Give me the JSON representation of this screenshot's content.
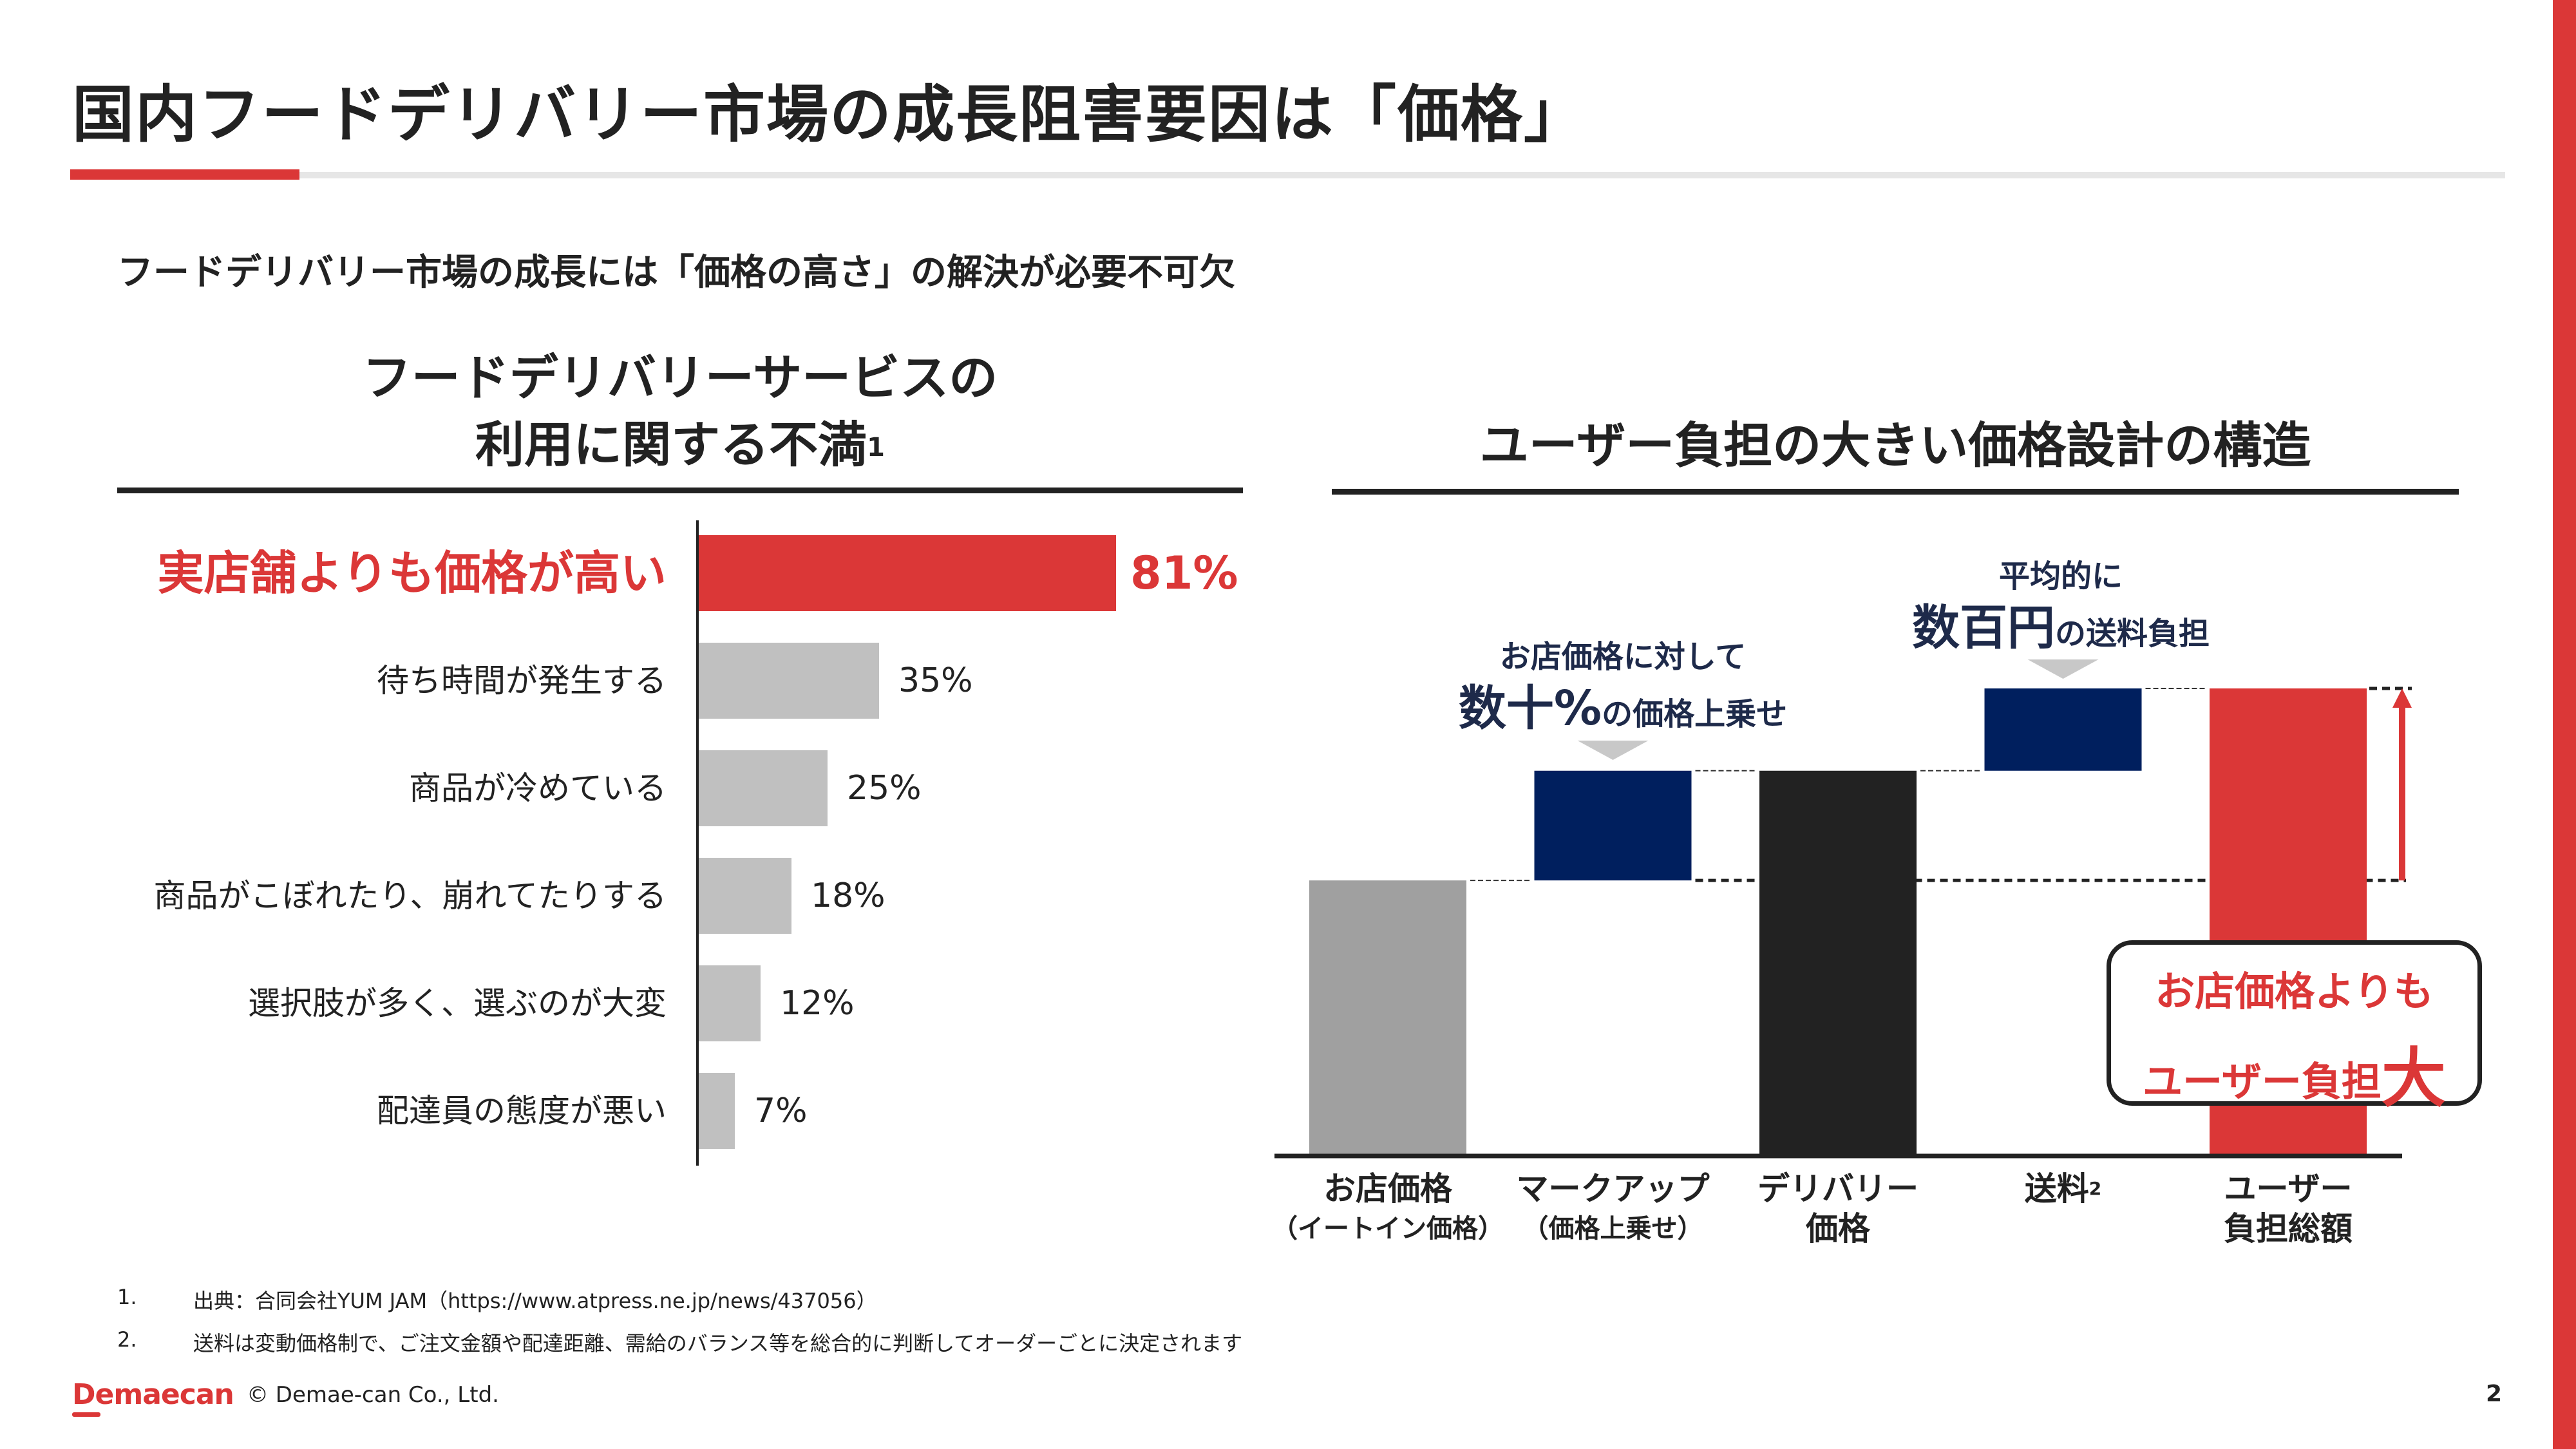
{
  "header": {
    "title": "国内フードデリバリー市場の成長阻害要因は「価格」",
    "subtitle": "フードデリバリー市場の成長には「価格の高さ」の解決が必要不可欠"
  },
  "colors": {
    "accent_red": "#db3737",
    "bar_gray": "#c0c0c0",
    "navy": "#001f5e",
    "dark": "#222222",
    "store_gray": "#a0a0a0",
    "triangle_gray": "#c8c8c8",
    "annotation_navy": "#1e2a4a"
  },
  "left_panel": {
    "title_line1": "フードデリバリーサービスの",
    "title_line2": "利用に関する不満",
    "title_footnote_mark": "1"
  },
  "right_panel": {
    "title": "ユーザー負担の大きい価格設計の構造",
    "annotation_markup": {
      "line1": "お店価格に対して",
      "emphasis": "数十%",
      "rest": "の価格上乗せ"
    },
    "annotation_shipping": {
      "line1": "平均的に",
      "emphasis": "数百円",
      "rest": "の送料負担"
    },
    "callout": {
      "line1": "お店価格よりも",
      "line2": "ユーザー負担",
      "emphasis": "大"
    }
  },
  "chart_data": [
    {
      "type": "bar",
      "orientation": "horizontal",
      "title": "フードデリバリーサービスの利用に関する不満¹",
      "categories": [
        "実店舗よりも価格が高い",
        "待ち時間が発生する",
        "商品が冷めている",
        "商品がこぼれたり、崩れてたりする",
        "選択肢が多く、選ぶのが大変",
        "配達員の態度が悪い"
      ],
      "values": [
        81,
        35,
        25,
        18,
        12,
        7
      ],
      "value_labels": [
        "81%",
        "35%",
        "25%",
        "18%",
        "12%",
        "7%"
      ],
      "highlight_index": 0,
      "unit": "%",
      "xlim": [
        0,
        100
      ],
      "grid": false,
      "legend": "none"
    },
    {
      "type": "bar",
      "subtype": "waterfall",
      "title": "ユーザー負担の大きい価格設計の構造",
      "categories": [
        {
          "label": "お店価格",
          "sublabel": "（イートイン価格）"
        },
        {
          "label": "マークアップ",
          "sublabel": "（価格上乗せ）"
        },
        {
          "label": "デリバリー",
          "sublabel": "価格"
        },
        {
          "label": "送料",
          "sublabel": "",
          "footnote_mark": "2"
        },
        {
          "label": "ユーザー",
          "sublabel": "負担総額"
        }
      ],
      "bars": [
        {
          "name": "store_price",
          "kind": "total",
          "start": 0,
          "end": 100
        },
        {
          "name": "markup",
          "kind": "increment",
          "start": 100,
          "end": 140
        },
        {
          "name": "delivery_price",
          "kind": "total",
          "start": 0,
          "end": 140
        },
        {
          "name": "shipping_fee",
          "kind": "increment",
          "start": 140,
          "end": 170
        },
        {
          "name": "user_total",
          "kind": "total",
          "start": 0,
          "end": 170
        }
      ],
      "value_note": "Illustrative relative scale; no numeric axis shown",
      "ylim": [
        0,
        170
      ],
      "grid": false,
      "legend": "none"
    }
  ],
  "footnotes": [
    {
      "number": "1.",
      "text": "出典：合同会社YUM JAM（https://www.atpress.ne.jp/news/437056）"
    },
    {
      "number": "2.",
      "text": "送料は変動価格制で、ご注文金額や配達距離、需給のバランス等を総合的に判断してオーダーごとに決定されます"
    }
  ],
  "footer": {
    "logo": "Demaecan",
    "copyright": "© Demae-can Co., Ltd.",
    "page_number": "2"
  }
}
